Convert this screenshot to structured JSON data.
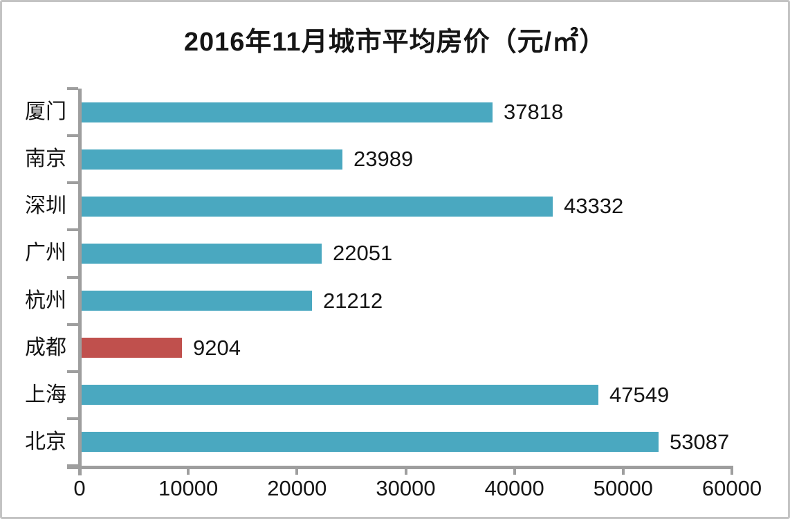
{
  "page": {
    "background": "#ffffff",
    "border_color": "#c3c3c3"
  },
  "chart_data": {
    "type": "bar",
    "orientation": "horizontal",
    "title": "2016年11月城市平均房价（元/㎡）",
    "categories": [
      "厦门",
      "南京",
      "深圳",
      "广州",
      "杭州",
      "成都",
      "上海",
      "北京"
    ],
    "values": [
      37818,
      23989,
      43332,
      22051,
      21212,
      9204,
      47549,
      53087
    ],
    "data_labels": [
      "37818",
      "23989",
      "43332",
      "22051",
      "21212",
      "9204",
      "47549",
      "53087"
    ],
    "bar_colors": [
      "#4aa8c0",
      "#4aa8c0",
      "#4aa8c0",
      "#4aa8c0",
      "#4aa8c0",
      "#c0504d",
      "#4aa8c0",
      "#4aa8c0"
    ],
    "default_bar_color": "#4aa8c0",
    "highlight_bar_color": "#c0504d",
    "xlim": [
      0,
      60000
    ],
    "x_ticks": [
      0,
      10000,
      20000,
      30000,
      40000,
      50000,
      60000
    ],
    "x_tick_labels": [
      "0",
      "10000",
      "20000",
      "30000",
      "40000",
      "50000",
      "60000"
    ],
    "axis_color": "#9e9e9e",
    "grid": false,
    "legend": false,
    "xlabel": "",
    "ylabel": ""
  }
}
